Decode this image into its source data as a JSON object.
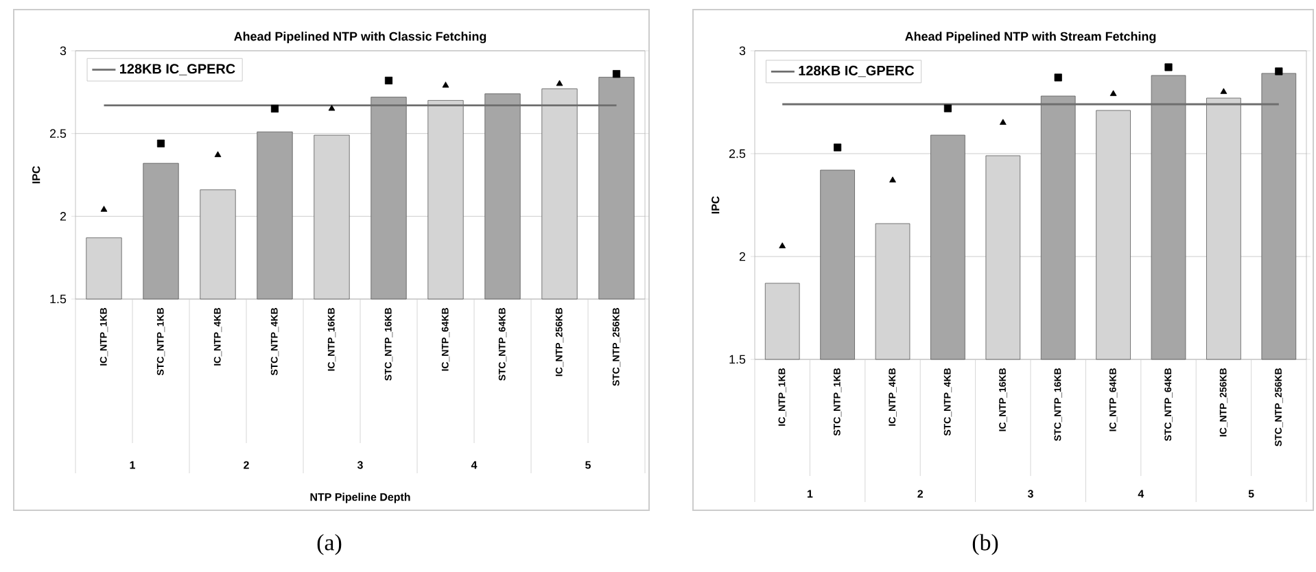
{
  "chart_data": [
    {
      "type": "bar",
      "title": "Ahead Pipelined NTP with Classic Fetching",
      "xlabel": "NTP Pipeline Depth",
      "ylabel": "IPC",
      "categories": [
        "IC_NTP_1KB",
        "STC_NTP_1KB",
        "IC_NTP_4KB",
        "STC_NTP_4KB",
        "IC_NTP_16KB",
        "STC_NTP_16KB",
        "IC_NTP_64KB",
        "STC_NTP_64KB",
        "IC_NTP_256KB",
        "STC_NTP_256KB"
      ],
      "series": [
        {
          "type": "bar",
          "colors": [
            "#d4d4d4",
            "#a6a6a6",
            "#d4d4d4",
            "#a6a6a6",
            "#d4d4d4",
            "#a6a6a6",
            "#d4d4d4",
            "#a6a6a6",
            "#d4d4d4",
            "#a6a6a6"
          ],
          "values": [
            1.87,
            2.32,
            2.16,
            2.51,
            2.49,
            2.72,
            2.7,
            2.74,
            2.77,
            2.84
          ]
        },
        {
          "type": "scatter",
          "marker": "triangle",
          "color": "#000000",
          "values": [
            2.04,
            null,
            2.37,
            null,
            2.65,
            null,
            2.79,
            null,
            2.8,
            null
          ]
        },
        {
          "type": "scatter",
          "marker": "square",
          "color": "#000000",
          "values": [
            null,
            2.44,
            null,
            2.65,
            null,
            2.82,
            null,
            null,
            null,
            2.86
          ]
        }
      ],
      "ylim": [
        1.5,
        3
      ],
      "yticks": [
        1.5,
        2,
        2.5,
        3
      ],
      "grid": "y",
      "legend": "top left",
      "ref_lines": [
        {
          "axis": "y",
          "value": 2.67,
          "label": "128KB IC_GPERC",
          "color": "#6e6e6e"
        }
      ],
      "annotations": [
        "1",
        "2",
        "3",
        "4",
        "5",
        "(a)"
      ]
    },
    {
      "type": "bar",
      "title": "Ahead Pipelined NTP with Stream Fetching",
      "ylabel": "IPC",
      "categories": [
        "IC_NTP_1KB",
        "STC_NTP_1KB",
        "IC_NTP_4KB",
        "STC_NTP_4KB",
        "IC_NTP_16KB",
        "STC_NTP_16KB",
        "IC_NTP_64KB",
        "STC_NTP_64KB",
        "IC_NTP_256KB",
        "STC_NTP_256KB"
      ],
      "series": [
        {
          "type": "bar",
          "colors": [
            "#d4d4d4",
            "#a6a6a6",
            "#d4d4d4",
            "#a6a6a6",
            "#d4d4d4",
            "#a6a6a6",
            "#d4d4d4",
            "#a6a6a6",
            "#d4d4d4",
            "#a6a6a6"
          ],
          "values": [
            1.87,
            2.42,
            2.16,
            2.59,
            2.49,
            2.78,
            2.71,
            2.88,
            2.77,
            2.89
          ]
        },
        {
          "type": "scatter",
          "marker": "triangle",
          "color": "#000000",
          "values": [
            2.05,
            null,
            2.37,
            null,
            2.65,
            null,
            2.79,
            null,
            2.8,
            null
          ]
        },
        {
          "type": "scatter",
          "marker": "square",
          "color": "#000000",
          "values": [
            null,
            2.53,
            null,
            2.72,
            null,
            2.87,
            null,
            2.92,
            null,
            2.9
          ]
        }
      ],
      "ylim": [
        1.5,
        3
      ],
      "yticks": [
        1.5,
        2,
        2.5,
        3
      ],
      "grid": "y",
      "legend": "top left",
      "ref_lines": [
        {
          "axis": "y",
          "value": 2.74,
          "label": "128KB IC_GPERC",
          "color": "#6e6e6e"
        }
      ],
      "annotations": [
        "1",
        "2",
        "3",
        "4",
        "5",
        "(b)"
      ]
    }
  ]
}
